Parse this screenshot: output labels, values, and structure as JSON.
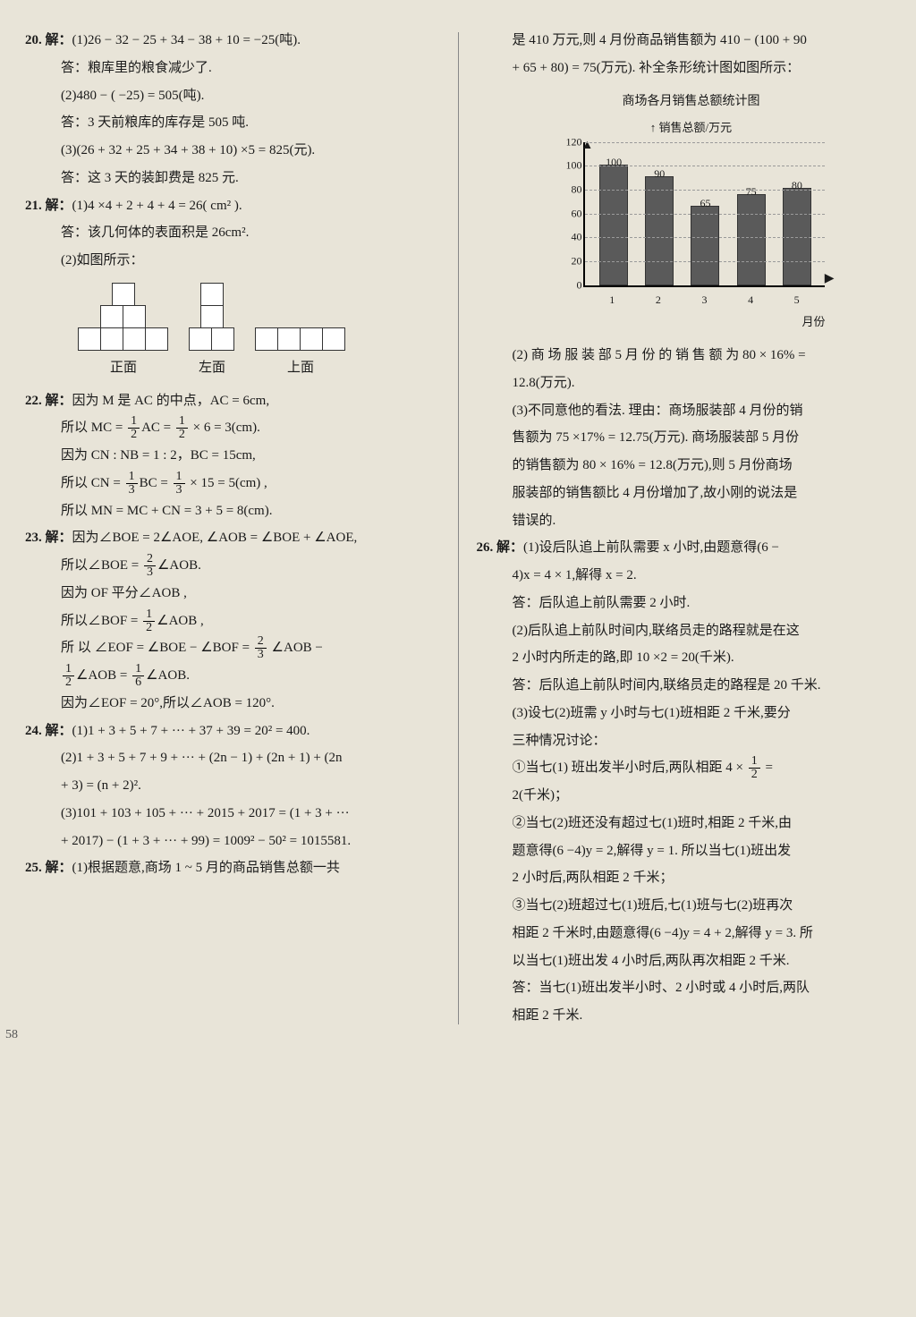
{
  "left": {
    "q20": {
      "head": "20. 解：",
      "l1": "(1)26 − 32 − 25 + 34 − 38 + 10 = −25(吨).",
      "l2": "答：粮库里的粮食减少了.",
      "l3": "(2)480 − ( −25) = 505(吨).",
      "l4": "答：3 天前粮库的库存是 505 吨.",
      "l5": "(3)(26 + 32 + 25 + 34 + 38 + 10) ×5 = 825(元).",
      "l6": "答：这 3 天的装卸费是 825 元."
    },
    "q21": {
      "head": "21. 解：",
      "l1": "(1)4 ×4 + 2 + 4 + 4 = 26( cm² ).",
      "l2": "答：该几何体的表面积是 26cm².",
      "l3": "(2)如图所示：",
      "labels": {
        "a": "正面",
        "b": "左面",
        "c": "上面"
      }
    },
    "q22": {
      "head": "22. 解：",
      "l1": "因为 M 是 AC 的中点，AC = 6cm,",
      "l2a": "所以 MC = ",
      "l2b": "AC = ",
      "l2c": " × 6 = 3(cm).",
      "l3": "因为 CN : NB = 1 : 2，BC = 15cm,",
      "l4a": "所以 CN = ",
      "l4b": "BC = ",
      "l4c": " × 15 = 5(cm) ,",
      "l5": "所以 MN = MC + CN = 3 + 5 = 8(cm)."
    },
    "q23": {
      "head": "23. 解：",
      "l1": "因为∠BOE = 2∠AOE, ∠AOB = ∠BOE + ∠AOE,",
      "l2a": "所以∠BOE = ",
      "l2b": "∠AOB.",
      "l3": "因为 OF 平分∠AOB ,",
      "l4a": "所以∠BOF = ",
      "l4b": "∠AOB ,",
      "l5a": "所 以 ∠EOF = ∠BOE − ∠BOF = ",
      "l5b": " ∠AOB −",
      "l6a": "",
      "l6b": "∠AOB = ",
      "l6c": "∠AOB.",
      "l7": "因为∠EOF = 20°,所以∠AOB = 120°."
    },
    "q24": {
      "head": "24. 解：",
      "l1": "(1)1 + 3 + 5 + 7 + ··· + 37 + 39 = 20² = 400.",
      "l2": "(2)1 + 3 + 5 + 7 + 9 + ··· + (2n − 1) + (2n + 1) + (2n",
      "l3": "+ 3) = (n + 2)².",
      "l4": "(3)101 + 103 + 105 + ··· + 2015 + 2017 = (1 + 3 + ···",
      "l5": "+ 2017) − (1 + 3 + ··· + 99) = 1009² − 50² = 1015581."
    },
    "q25": {
      "head": "25. 解：",
      "l1": "(1)根据题意,商场 1 ~ 5 月的商品销售总额一共"
    }
  },
  "right": {
    "r1": "是 410 万元,则 4 月份商品销售额为 410 − (100 + 90",
    "r2": "+ 65 + 80) = 75(万元). 补全条形统计图如图所示：",
    "chart": {
      "title": "商场各月销售总额统计图",
      "sub": "销售总额/万元",
      "xlabel": "月份",
      "ylim_max": 120,
      "yticks": [
        0,
        20,
        40,
        60,
        80,
        100,
        120
      ],
      "categories": [
        "1",
        "2",
        "3",
        "4",
        "5"
      ],
      "values": [
        100,
        90,
        65,
        75,
        80
      ],
      "bar_color": "#5a5a5a",
      "grid_color": "#9a9a9a"
    },
    "r3": "(2) 商 场 服 装 部 5 月 份 的 销 售 额 为 80 × 16% =",
    "r4": "12.8(万元).",
    "r5": "(3)不同意他的看法. 理由：商场服装部 4 月份的销",
    "r6": "售额为 75 ×17% = 12.75(万元). 商场服装部 5 月份",
    "r7": "的销售额为 80 × 16% = 12.8(万元),则 5 月份商场",
    "r8": "服装部的销售额比 4 月份增加了,故小刚的说法是",
    "r9": "错误的.",
    "q26": {
      "head": "26. 解：",
      "l1": "(1)设后队追上前队需要 x 小时,由题意得(6 −",
      "l2": "4)x = 4 × 1,解得 x = 2.",
      "l3": "答：后队追上前队需要 2 小时.",
      "l4": "(2)后队追上前队时间内,联络员走的路程就是在这",
      "l5": "2 小时内所走的路,即 10 ×2 = 20(千米).",
      "l6": "答：后队追上前队时间内,联络员走的路程是 20 千米.",
      "l7": "(3)设七(2)班需 y 小时与七(1)班相距 2 千米,要分",
      "l8": "三种情况讨论：",
      "l9a": "①当七(1) 班出发半小时后,两队相距 4 × ",
      "l9b": " =",
      "l10": "2(千米)；",
      "l11": "②当七(2)班还没有超过七(1)班时,相距 2 千米,由",
      "l12": "题意得(6 −4)y = 2,解得 y = 1. 所以当七(1)班出发",
      "l13": "2 小时后,两队相距 2 千米；",
      "l14": "③当七(2)班超过七(1)班后,七(1)班与七(2)班再次",
      "l15": "相距 2 千米时,由题意得(6 −4)y = 4 + 2,解得 y = 3. 所",
      "l16": "以当七(1)班出发 4 小时后,两队再次相距 2 千米.",
      "l17": "答：当七(1)班出发半小时、2 小时或 4 小时后,两队",
      "l18": "相距 2 千米."
    }
  },
  "page_num": "58"
}
